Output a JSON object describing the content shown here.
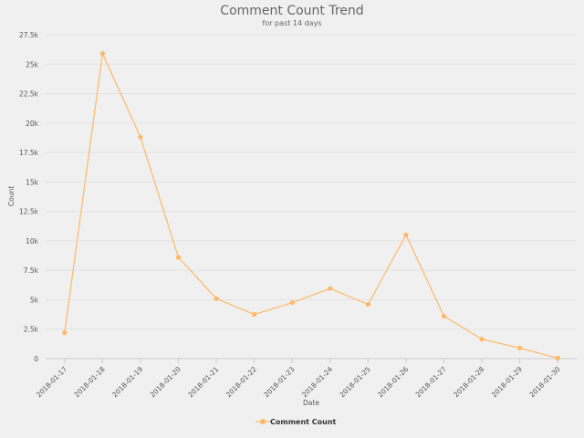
{
  "chart_data": {
    "type": "line",
    "title": "Comment Count Trend",
    "subtitle": "for past 14 days",
    "xlabel": "Date",
    "ylabel": "Count",
    "ylim": [
      0,
      27500
    ],
    "yticks": [
      0,
      2500,
      5000,
      7500,
      10000,
      12500,
      15000,
      17500,
      20000,
      22500,
      25000,
      27500
    ],
    "ytick_labels": [
      "0",
      "2.5k",
      "5k",
      "7.5k",
      "10k",
      "12.5k",
      "15k",
      "17.5k",
      "20k",
      "22.5k",
      "25k",
      "27.5k"
    ],
    "categories": [
      "2018-01-17",
      "2018-01-18",
      "2018-01-19",
      "2018-01-20",
      "2018-01-21",
      "2018-01-22",
      "2018-01-23",
      "2018-01-24",
      "2018-01-25",
      "2018-01-26",
      "2018-01-27",
      "2018-01-28",
      "2018-01-29",
      "2018-01-30"
    ],
    "series": [
      {
        "name": "Comment Count",
        "color": "#ffb866",
        "values": [
          2200,
          25900,
          18800,
          8600,
          5100,
          3750,
          4750,
          5950,
          4600,
          10500,
          3600,
          1650,
          900,
          50
        ]
      }
    ],
    "grid": true,
    "legend": "bottom-center"
  }
}
